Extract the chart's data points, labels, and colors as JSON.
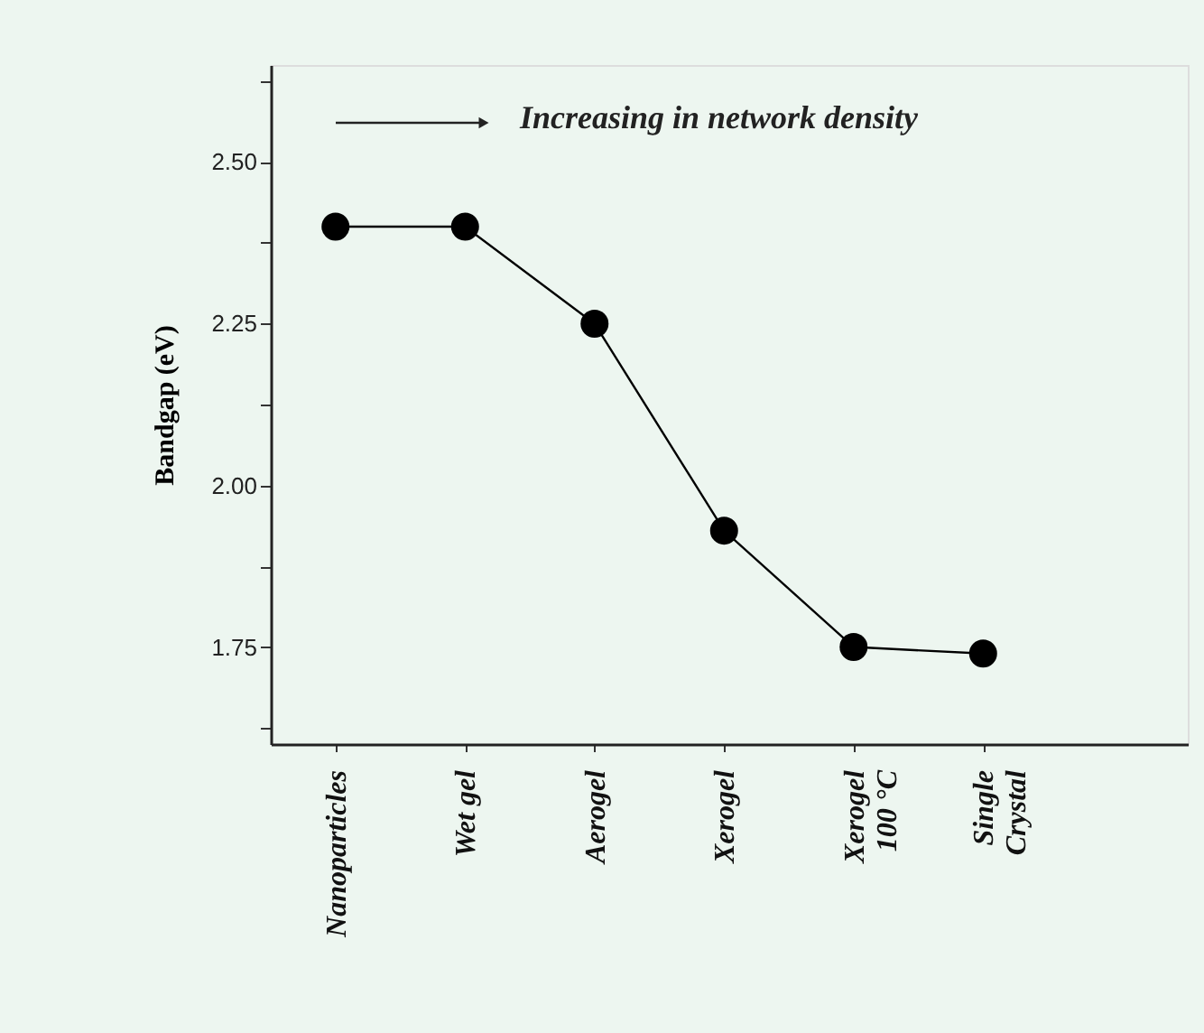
{
  "chart_data": {
    "type": "line",
    "categories": [
      "Nanoparticles",
      "Wet gel",
      "Aerogel",
      "Xerogel",
      "Xerogel\n100 °C",
      "Single\nCrystal"
    ],
    "values": [
      2.4,
      2.4,
      2.25,
      1.93,
      1.75,
      1.74
    ],
    "color": "#000000",
    "marker": "circle",
    "line_style": "solid",
    "ylabel": "Bandgap (eV)",
    "ylim": [
      1.6,
      2.65
    ],
    "yticks": [
      {
        "value": 1.625,
        "label": null
      },
      {
        "value": 1.75,
        "label": "1.75"
      },
      {
        "value": 1.875,
        "label": null
      },
      {
        "value": 2.0,
        "label": "2.00"
      },
      {
        "value": 2.125,
        "label": null
      },
      {
        "value": 2.25,
        "label": "2.25"
      },
      {
        "value": 2.375,
        "label": null
      },
      {
        "value": 2.5,
        "label": "2.50"
      },
      {
        "value": 2.625,
        "label": null
      }
    ],
    "annotations": [
      "Increasing in network density"
    ],
    "grid": false
  }
}
